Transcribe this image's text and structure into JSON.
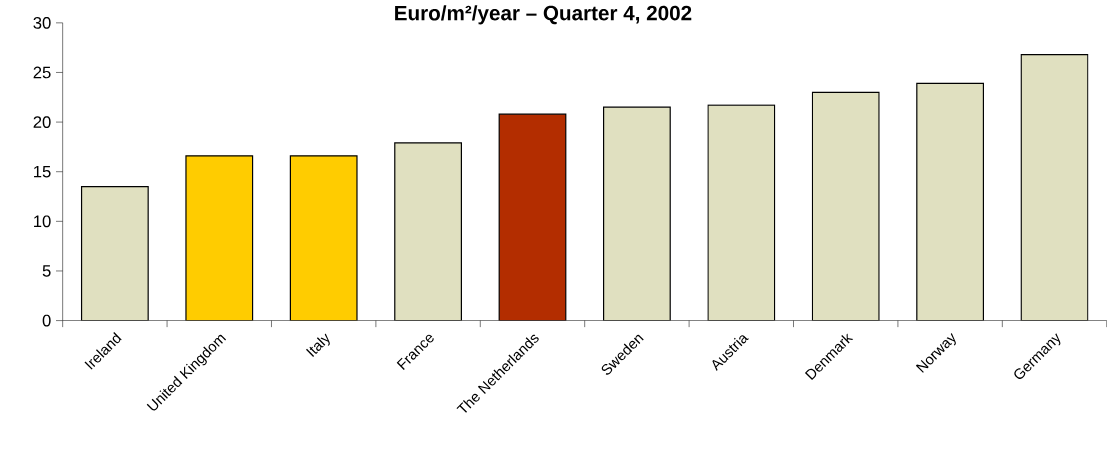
{
  "chart_data": {
    "type": "bar",
    "title": "Euro/m²/year – Quarter 4, 2002",
    "categories": [
      "Ireland",
      "United Kingdom",
      "Italy",
      "France",
      "The Netherlands",
      "Sweden",
      "Austria",
      "Denmark",
      "Norway",
      "Germany"
    ],
    "values": [
      13.5,
      16.6,
      16.6,
      17.9,
      20.8,
      21.5,
      21.7,
      23.0,
      23.9,
      26.8
    ],
    "colors": [
      "#e0e0c0",
      "#ffcc00",
      "#ffcc00",
      "#e0e0c0",
      "#b32d00",
      "#e0e0c0",
      "#e0e0c0",
      "#e0e0c0",
      "#e0e0c0",
      "#e0e0c0"
    ],
    "ylim": [
      0,
      30
    ],
    "yticks": [
      0,
      5,
      10,
      15,
      20,
      25,
      30
    ]
  }
}
